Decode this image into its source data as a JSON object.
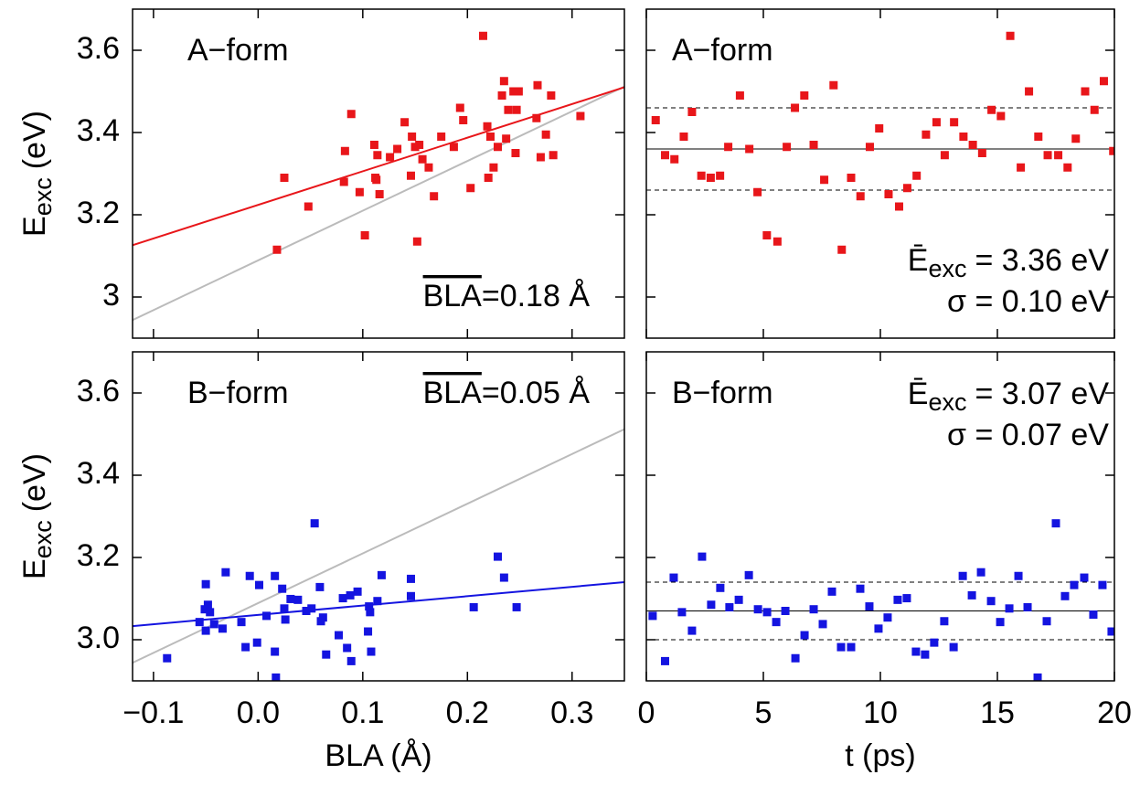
{
  "chart_data": [
    {
      "type": "scatter",
      "label": "A−form",
      "stat": {
        "overline": "BLA",
        "text": "=0.18 Å"
      },
      "ylabel": {
        "symbol": "E",
        "sub": "exc",
        "unit": "(eV)"
      },
      "xlim": [
        -0.12,
        0.35
      ],
      "ylim": [
        2.9,
        3.7
      ],
      "xticks": [
        -0.1,
        0,
        0.1,
        0.2,
        0.3
      ],
      "yticks": [
        3,
        3.2,
        3.4,
        3.6
      ],
      "xtick_labels": false,
      "ytick_labels": true,
      "color": "#e8161a",
      "x": [
        0.018,
        0.025,
        0.048,
        0.082,
        0.083,
        0.089,
        0.097,
        0.102,
        0.111,
        0.114,
        0.112,
        0.113,
        0.116,
        0.126,
        0.133,
        0.14,
        0.146,
        0.147,
        0.15,
        0.152,
        0.154,
        0.157,
        0.163,
        0.168,
        0.175,
        0.187,
        0.193,
        0.196,
        0.203,
        0.215,
        0.219,
        0.22,
        0.222,
        0.225,
        0.229,
        0.233,
        0.235,
        0.237,
        0.239,
        0.244,
        0.246,
        0.247,
        0.249,
        0.267,
        0.266,
        0.27,
        0.275,
        0.28,
        0.282,
        0.308
      ],
      "values": [
        3.115,
        3.29,
        3.22,
        3.28,
        3.355,
        3.445,
        3.255,
        3.15,
        3.37,
        3.345,
        3.29,
        3.285,
        3.25,
        3.34,
        3.36,
        3.425,
        3.295,
        3.39,
        3.365,
        3.135,
        3.37,
        3.335,
        3.315,
        3.245,
        3.39,
        3.365,
        3.46,
        3.43,
        3.265,
        3.635,
        3.415,
        3.29,
        3.39,
        3.315,
        3.365,
        3.49,
        3.525,
        3.385,
        3.455,
        3.5,
        3.35,
        3.455,
        3.5,
        3.515,
        3.435,
        3.34,
        3.395,
        3.49,
        3.345,
        3.44
      ],
      "lines": [
        {
          "color": "#bbbbbb",
          "x": [
            -0.12,
            0.35
          ],
          "y": [
            2.944,
            3.512
          ]
        },
        {
          "color": "#e8161a",
          "x": [
            -0.12,
            0.35
          ],
          "y": [
            3.126,
            3.51
          ]
        }
      ]
    },
    {
      "type": "scatter",
      "label": "A−form",
      "stat": {
        "symbol": "Ē",
        "sub": "exc",
        "text": "= 3.36 eV"
      },
      "sigma": "σ = 0.10 eV",
      "xlim": [
        0,
        20
      ],
      "ylim": [
        2.9,
        3.7
      ],
      "xticks": [
        0,
        5,
        10,
        15,
        20
      ],
      "yticks": [
        3,
        3.2,
        3.4,
        3.6
      ],
      "xtick_labels": false,
      "ytick_labels": false,
      "color": "#e8161a",
      "x": [
        0.4,
        0.8,
        1.2,
        1.6,
        1.95,
        2.35,
        2.75,
        3.15,
        3.5,
        4.0,
        4.4,
        4.75,
        5.15,
        5.6,
        6.0,
        6.35,
        6.75,
        7.15,
        7.6,
        8.0,
        8.35,
        8.75,
        9.15,
        9.55,
        9.95,
        10.35,
        10.8,
        11.15,
        11.55,
        11.95,
        12.4,
        12.75,
        13.15,
        13.55,
        13.95,
        14.35,
        14.75,
        15.15,
        15.55,
        16.0,
        16.35,
        16.75,
        17.15,
        17.6,
        18.0,
        18.35,
        18.75,
        19.15,
        19.55,
        19.95
      ],
      "values": [
        3.43,
        3.345,
        3.335,
        3.39,
        3.45,
        3.295,
        3.29,
        3.295,
        3.365,
        3.49,
        3.36,
        3.255,
        3.15,
        3.135,
        3.365,
        3.46,
        3.49,
        3.37,
        3.285,
        3.515,
        3.115,
        3.29,
        3.245,
        3.365,
        3.41,
        3.25,
        3.22,
        3.265,
        3.295,
        3.395,
        3.425,
        3.345,
        3.425,
        3.39,
        3.37,
        3.35,
        3.455,
        3.44,
        3.635,
        3.315,
        3.5,
        3.39,
        3.345,
        3.345,
        3.315,
        3.385,
        3.5,
        3.455,
        3.525,
        3.355
      ],
      "hlines": [
        {
          "value": 3.36,
          "dashed": false
        },
        {
          "value": 3.26,
          "dashed": true
        },
        {
          "value": 3.46,
          "dashed": true
        }
      ]
    },
    {
      "type": "scatter",
      "label": "B−form",
      "stat": {
        "overline": "BLA",
        "text": "=0.05 Å"
      },
      "ylabel": {
        "symbol": "E",
        "sub": "exc",
        "unit": "(eV)"
      },
      "xlabel": "BLA (Å)",
      "xlim": [
        -0.12,
        0.35
      ],
      "ylim": [
        2.9,
        3.7
      ],
      "xticks": [
        {
          "value": -0.1,
          "label": "−0.1"
        },
        {
          "value": 0,
          "label": "0.0"
        },
        0.1,
        0.2,
        0.3
      ],
      "yticks": [
        {
          "value": 3,
          "label": "3.0"
        },
        3.2,
        3.4,
        3.6
      ],
      "xtick_labels": true,
      "ytick_labels": true,
      "color": "#1414e0",
      "x": [
        -0.087,
        -0.056,
        -0.051,
        -0.05,
        -0.048,
        -0.046,
        -0.05,
        -0.042,
        -0.034,
        -0.031,
        -0.016,
        -0.012,
        -0.008,
        -0.001,
        0.001,
        0.008,
        0.016,
        0.016,
        0.017,
        0.023,
        0.025,
        0.026,
        0.031,
        0.038,
        0.046,
        0.051,
        0.054,
        0.059,
        0.06,
        0.062,
        0.065,
        0.077,
        0.081,
        0.085,
        0.088,
        0.089,
        0.095,
        0.105,
        0.106,
        0.107,
        0.108,
        0.114,
        0.118,
        0.146,
        0.146,
        0.206,
        0.229,
        0.235,
        0.247
      ],
      "values": [
        2.955,
        3.043,
        3.074,
        3.135,
        3.085,
        3.067,
        3.022,
        3.038,
        3.027,
        3.164,
        3.043,
        2.982,
        3.155,
        2.993,
        3.133,
        3.058,
        3.155,
        2.971,
        2.908,
        3.124,
        3.076,
        3.049,
        3.099,
        3.097,
        3.07,
        3.076,
        3.283,
        3.128,
        3.045,
        3.054,
        2.964,
        3.011,
        3.101,
        2.98,
        3.108,
        2.948,
        3.117,
        3.02,
        3.081,
        3.067,
        2.971,
        3.094,
        3.157,
        3.148,
        3.106,
        3.079,
        3.202,
        3.151,
        3.079
      ],
      "lines": [
        {
          "color": "#bbbbbb",
          "x": [
            -0.12,
            0.35
          ],
          "y": [
            2.944,
            3.512
          ]
        },
        {
          "color": "#1414e0",
          "x": [
            -0.12,
            0.35
          ],
          "y": [
            3.033,
            3.14
          ]
        }
      ]
    },
    {
      "type": "scatter",
      "label": "B−form",
      "stat": {
        "symbol": "Ē",
        "sub": "exc",
        "text": "= 3.07 eV"
      },
      "sigma": "σ = 0.07 eV",
      "xlabel": "t (ps)",
      "xlim": [
        0,
        20
      ],
      "ylim": [
        2.9,
        3.7
      ],
      "xticks": [
        0,
        5,
        10,
        15,
        20
      ],
      "yticks": [
        3,
        3.2,
        3.4,
        3.6
      ],
      "xtick_labels": true,
      "ytick_labels": false,
      "color": "#1414e0",
      "x": [
        0.27,
        0.8,
        1.17,
        1.52,
        1.95,
        2.38,
        2.77,
        3.16,
        3.55,
        3.95,
        4.38,
        4.77,
        5.16,
        5.55,
        5.94,
        6.37,
        6.76,
        7.15,
        7.54,
        7.93,
        8.32,
        8.75,
        9.14,
        9.53,
        9.92,
        10.31,
        10.74,
        11.13,
        11.52,
        11.91,
        12.3,
        12.73,
        13.13,
        13.52,
        13.91,
        14.3,
        14.73,
        15.12,
        15.51,
        15.9,
        16.29,
        16.72,
        17.11,
        17.5,
        17.89,
        18.28,
        18.71,
        19.1,
        19.49,
        19.88
      ],
      "values": [
        3.058,
        2.948,
        3.151,
        3.067,
        3.022,
        3.202,
        3.085,
        3.126,
        3.079,
        3.097,
        3.157,
        3.074,
        3.067,
        3.043,
        3.07,
        2.955,
        3.011,
        3.074,
        3.038,
        3.117,
        2.982,
        2.982,
        3.124,
        3.081,
        3.027,
        3.054,
        3.097,
        3.101,
        2.971,
        2.964,
        2.993,
        3.045,
        2.982,
        3.155,
        3.108,
        3.164,
        3.094,
        3.043,
        3.076,
        3.155,
        3.079,
        2.908,
        3.045,
        3.283,
        3.106,
        3.133,
        3.151,
        3.061,
        3.133,
        3.02
      ],
      "hlines": [
        {
          "value": 3.07,
          "dashed": false
        },
        {
          "value": 3.0,
          "dashed": true
        },
        {
          "value": 3.14,
          "dashed": true
        }
      ]
    }
  ]
}
